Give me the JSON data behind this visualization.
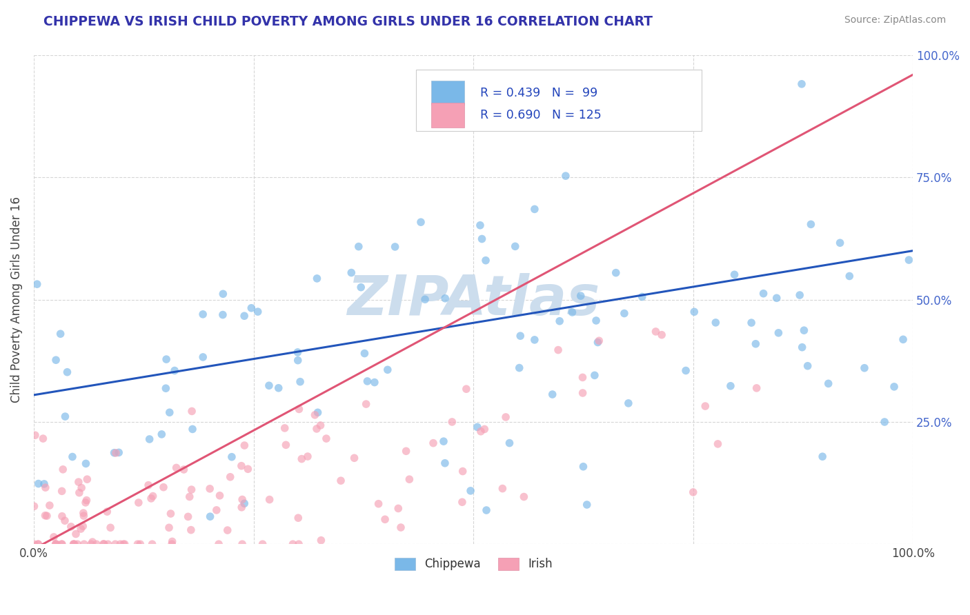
{
  "title": "CHIPPEWA VS IRISH CHILD POVERTY AMONG GIRLS UNDER 16 CORRELATION CHART",
  "source_text": "Source: ZipAtlas.com",
  "ylabel": "Child Poverty Among Girls Under 16",
  "chippewa_R": 0.439,
  "chippewa_N": 99,
  "irish_R": 0.69,
  "irish_N": 125,
  "chippewa_color": "#7ab8e8",
  "irish_color": "#f5a0b5",
  "chippewa_line_color": "#2255bb",
  "irish_line_color": "#e05575",
  "watermark_color": "#ccdded",
  "background_color": "#ffffff",
  "legend_label_chippewa": "Chippewa",
  "legend_label_irish": "Irish",
  "title_color": "#3333aa",
  "source_color": "#888888",
  "axis_label_color": "#4466cc",
  "ylabel_color": "#444444",
  "grid_color": "#cccccc",
  "right_tick_color": "#4466cc"
}
